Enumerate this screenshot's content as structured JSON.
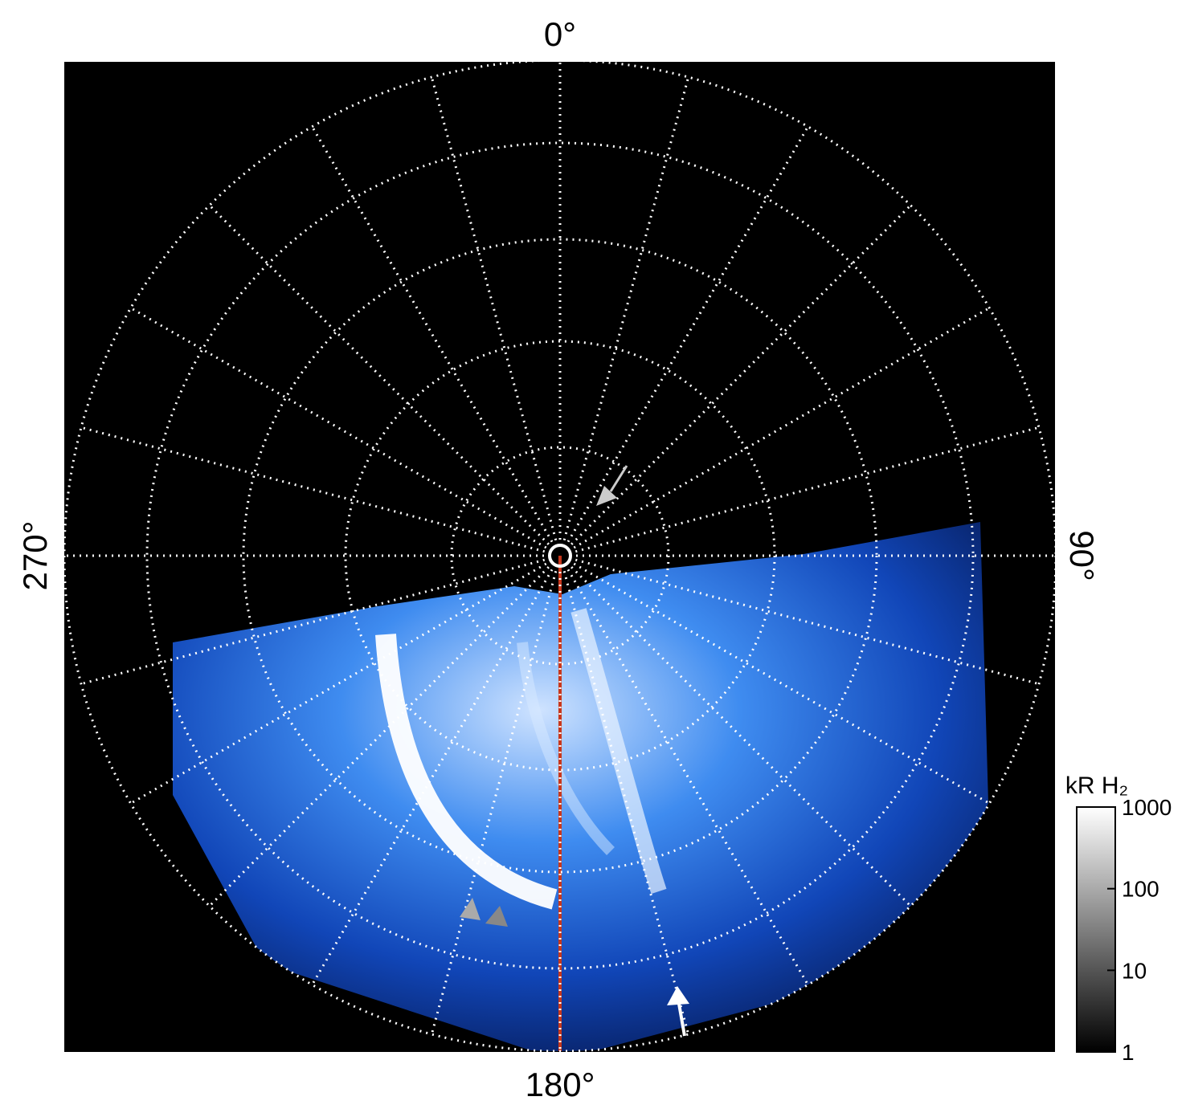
{
  "chart_data": {
    "type": "polar-image",
    "angle_labels": [
      "0°",
      "90°",
      "180°",
      "270°"
    ],
    "colorbar": {
      "label": "kR H₂",
      "lim": [
        1,
        1000
      ],
      "ticks": [
        1,
        10,
        100,
        1000
      ],
      "log": true
    }
  }
}
